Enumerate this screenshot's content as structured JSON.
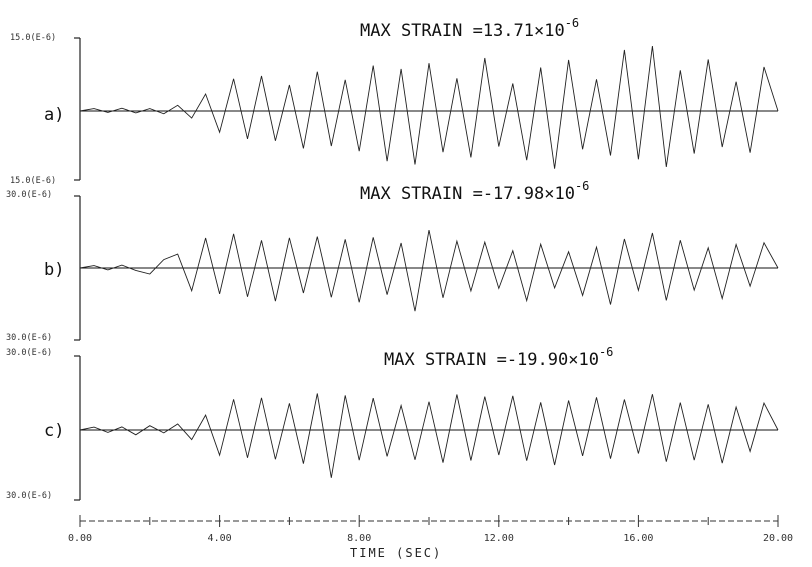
{
  "chart_data": [
    {
      "type": "line",
      "panel_label": "a)",
      "annotation": {
        "prefix": "MAX STRAIN =13.71×10",
        "exponent": "-6"
      },
      "y_top_label": "15.0(E-6)",
      "y_bottom_label": "15.0(E-6)",
      "ylim": [
        -1.5e-05,
        1.5e-05
      ],
      "xlim": [
        0,
        20
      ],
      "series": [
        {
          "x": [
            0,
            0.4,
            0.8,
            1.2,
            1.6,
            2.0,
            2.4,
            2.8,
            3.2,
            3.6,
            4.0,
            4.4,
            4.8,
            5.2,
            5.6,
            6.0,
            6.4,
            6.8,
            7.2,
            7.6,
            8.0,
            8.4,
            8.8,
            9.2,
            9.6,
            10.0,
            10.4,
            10.8,
            11.2,
            11.6,
            12.0,
            12.4,
            12.8,
            13.2,
            13.6,
            14.0,
            14.4,
            14.8,
            15.2,
            15.6,
            16.0,
            16.4,
            16.8,
            17.2,
            17.6,
            18.0,
            18.4,
            18.8,
            19.2,
            19.6,
            20.0
          ],
          "values": [
            0,
            5e-07,
            -3e-07,
            6e-07,
            -4e-07,
            5e-07,
            -6e-07,
            1.2e-06,
            -1.5e-06,
            3.6e-06,
            -4.5e-06,
            6.8e-06,
            -5.9e-06,
            7.4e-06,
            -6.3e-06,
            5.5e-06,
            -7.9e-06,
            8.3e-06,
            -7.4e-06,
            6.6e-06,
            -8.5e-06,
            9.6e-06,
            -1.06e-05,
            8.9e-06,
            -1.13e-05,
            1.01e-05,
            -8.7e-06,
            6.9e-06,
            -9.8e-06,
            1.12e-05,
            -7.5e-06,
            5.8e-06,
            -1.04e-05,
            9.2e-06,
            -1.22e-05,
            1.08e-05,
            -8.1e-06,
            6.7e-06,
            -9.4e-06,
            1.29e-05,
            -1.02e-05,
            1.371e-05,
            -1.18e-05,
            8.6e-06,
            -9e-06,
            1.09e-05,
            -7.6e-06,
            6.2e-06,
            -8.8e-06,
            9.3e-06,
            0
          ]
        }
      ]
    },
    {
      "type": "line",
      "panel_label": "b)",
      "annotation": {
        "prefix": "MAX STRAIN =-17.98×10",
        "exponent": "-6"
      },
      "y_top_label": "30.0(E-6)",
      "y_bottom_label": "30.0(E-6)",
      "ylim": [
        -3e-05,
        3e-05
      ],
      "xlim": [
        0,
        20
      ],
      "series": [
        {
          "x": [
            0,
            0.4,
            0.8,
            1.2,
            1.6,
            2.0,
            2.4,
            2.8,
            3.2,
            3.6,
            4.0,
            4.4,
            4.8,
            5.2,
            5.6,
            6.0,
            6.4,
            6.8,
            7.2,
            7.6,
            8.0,
            8.4,
            8.8,
            9.2,
            9.6,
            10.0,
            10.4,
            10.8,
            11.2,
            11.6,
            12.0,
            12.4,
            12.8,
            13.2,
            13.6,
            14.0,
            14.4,
            14.8,
            15.2,
            15.6,
            16.0,
            16.4,
            16.8,
            17.2,
            17.6,
            18.0,
            18.4,
            18.8,
            19.2,
            19.6,
            20.0
          ],
          "values": [
            0,
            1e-06,
            -8e-07,
            1.2e-06,
            -1e-06,
            -2.5e-06,
            3.5e-06,
            5.8e-06,
            -9.5e-06,
            1.25e-05,
            -1.08e-05,
            1.42e-05,
            -1.2e-05,
            1.15e-05,
            -1.38e-05,
            1.26e-05,
            -1.04e-05,
            1.31e-05,
            -1.22e-05,
            1.19e-05,
            -1.43e-05,
            1.28e-05,
            -1.11e-05,
            1.04e-05,
            -1.798e-05,
            1.58e-05,
            -1.24e-05,
            1.12e-05,
            -9.6e-06,
            1.08e-05,
            -8.5e-06,
            7.2e-06,
            -1.36e-05,
            9.9e-06,
            -8.3e-06,
            6.8e-06,
            -1.14e-05,
            8.7e-06,
            -1.52e-05,
            1.21e-05,
            -9.3e-06,
            1.46e-05,
            -1.35e-05,
            1.16e-05,
            -9.2e-06,
            8.4e-06,
            -1.27e-05,
            9.8e-06,
            -7.6e-06,
            1.05e-05,
            0
          ]
        }
      ]
    },
    {
      "type": "line",
      "panel_label": "c)",
      "annotation": {
        "prefix": "MAX STRAIN =-19.90×10",
        "exponent": "-6"
      },
      "y_top_label": "30.0(E-6)",
      "y_bottom_label": "30.0(E-6)",
      "ylim": [
        -3e-05,
        3e-05
      ],
      "xlim": [
        0,
        20
      ],
      "series": [
        {
          "x": [
            0,
            0.4,
            0.8,
            1.2,
            1.6,
            2.0,
            2.4,
            2.8,
            3.2,
            3.6,
            4.0,
            4.4,
            4.8,
            5.2,
            5.6,
            6.0,
            6.4,
            6.8,
            7.2,
            7.6,
            8.0,
            8.4,
            8.8,
            9.2,
            9.6,
            10.0,
            10.4,
            10.8,
            11.2,
            11.6,
            12.0,
            12.4,
            12.8,
            13.2,
            13.6,
            14.0,
            14.4,
            14.8,
            15.2,
            15.6,
            16.0,
            16.4,
            16.8,
            17.2,
            17.6,
            18.0,
            18.4,
            18.8,
            19.2,
            19.6,
            20.0
          ],
          "values": [
            0,
            1.2e-06,
            -1e-06,
            1.3e-06,
            -2e-06,
            1.8e-06,
            -1.2e-06,
            2.5e-06,
            -4e-06,
            6.2e-06,
            -1.05e-05,
            1.28e-05,
            -1.16e-05,
            1.34e-05,
            -1.22e-05,
            1.11e-05,
            -1.4e-05,
            1.52e-05,
            -1.99e-05,
            1.44e-05,
            -1.26e-05,
            1.33e-05,
            -1.1e-05,
            1.02e-05,
            -1.24e-05,
            1.18e-05,
            -1.36e-05,
            1.48e-05,
            -1.27e-05,
            1.39e-05,
            -1.04e-05,
            1.42e-05,
            -1.28e-05,
            1.15e-05,
            -1.46e-05,
            1.23e-05,
            -1.08e-05,
            1.36e-05,
            -1.19e-05,
            1.27e-05,
            -9.8e-06,
            1.49e-05,
            -1.32e-05,
            1.14e-05,
            -1.26e-05,
            1.07e-05,
            -1.38e-05,
            9.6e-06,
            -8.9e-06,
            1.12e-05,
            0
          ]
        }
      ]
    }
  ],
  "x_axis": {
    "tick_labels": [
      "0.00",
      "4.00",
      "8.00",
      "12.00",
      "16.00",
      "20.00"
    ],
    "tick_values": [
      0,
      4,
      8,
      12,
      16,
      20
    ],
    "label": "TIME (SEC)"
  },
  "colors": {
    "trace": "#222222",
    "baseline": "#111111",
    "axis": "#222222"
  }
}
